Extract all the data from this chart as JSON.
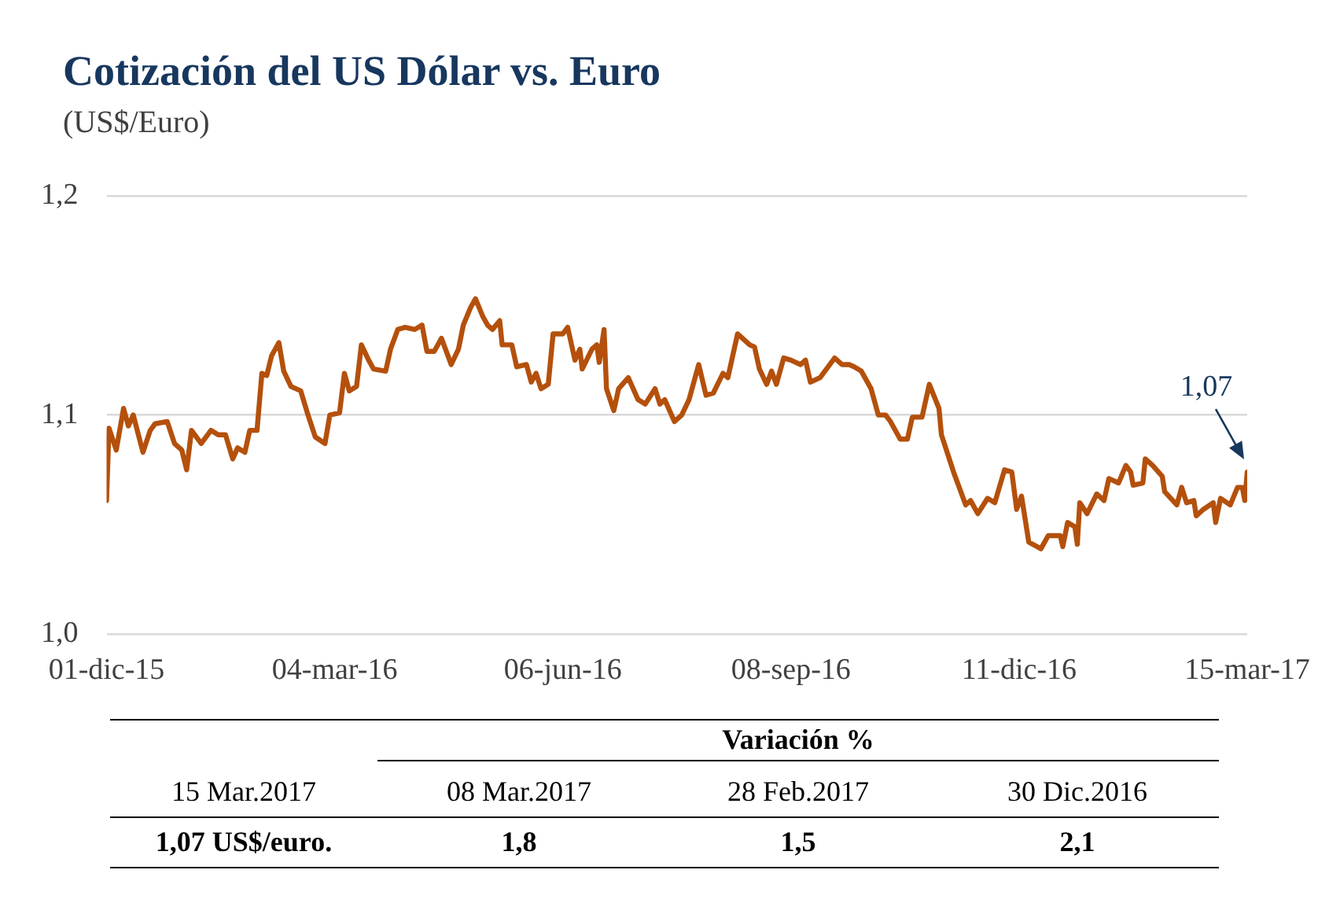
{
  "chart_data": [
    {
      "type": "line",
      "title": "Cotización del US Dólar vs. Euro",
      "subtitle": "(US$/Euro)",
      "color": "#b4500c",
      "grid": "y",
      "legend": false,
      "marker": "none",
      "line_style": "solid",
      "x": [
        "2015-12-01",
        "2015-12-02",
        "2015-12-05",
        "2015-12-08",
        "2015-12-10",
        "2015-12-12",
        "2015-12-16",
        "2015-12-19",
        "2015-12-21",
        "2015-12-26",
        "2015-12-29",
        "2016-01-01",
        "2016-01-03",
        "2016-01-05",
        "2016-01-09",
        "2016-01-13",
        "2016-01-16",
        "2016-01-19",
        "2016-01-22",
        "2016-01-24",
        "2016-01-27",
        "2016-01-29",
        "2016-02-01",
        "2016-02-03",
        "2016-02-05",
        "2016-02-07",
        "2016-02-10",
        "2016-02-12",
        "2016-02-15",
        "2016-02-19",
        "2016-02-22",
        "2016-02-25",
        "2016-02-29",
        "2016-03-02",
        "2016-03-06",
        "2016-03-08",
        "2016-03-10",
        "2016-03-13",
        "2016-03-15",
        "2016-03-18",
        "2016-03-20",
        "2016-03-25",
        "2016-03-27",
        "2016-03-30",
        "2016-04-02",
        "2016-04-06",
        "2016-04-09",
        "2016-04-11",
        "2016-04-14",
        "2016-04-17",
        "2016-04-21",
        "2016-04-24",
        "2016-04-26",
        "2016-04-29",
        "2016-05-01",
        "2016-05-04",
        "2016-05-06",
        "2016-05-08",
        "2016-05-11",
        "2016-05-12",
        "2016-05-16",
        "2016-05-18",
        "2016-05-22",
        "2016-05-24",
        "2016-05-26",
        "2016-05-28",
        "2016-05-31",
        "2016-06-02",
        "2016-06-06",
        "2016-06-08",
        "2016-06-11",
        "2016-06-13",
        "2016-06-14",
        "2016-06-18",
        "2016-06-20",
        "2016-06-21",
        "2016-06-23",
        "2016-06-24",
        "2016-06-27",
        "2016-06-29",
        "2016-07-03",
        "2016-07-07",
        "2016-07-10",
        "2016-07-14",
        "2016-07-16",
        "2016-07-18",
        "2016-07-22",
        "2016-07-25",
        "2016-07-28",
        "2016-08-01",
        "2016-08-04",
        "2016-08-07",
        "2016-08-11",
        "2016-08-13",
        "2016-08-17",
        "2016-08-22",
        "2016-08-24",
        "2016-08-26",
        "2016-08-29",
        "2016-08-31",
        "2016-09-02",
        "2016-09-05",
        "2016-09-08",
        "2016-09-12",
        "2016-09-14",
        "2016-09-16",
        "2016-09-20",
        "2016-09-26",
        "2016-09-29",
        "2016-10-02",
        "2016-10-04",
        "2016-10-07",
        "2016-10-11",
        "2016-10-14",
        "2016-10-17",
        "2016-10-19",
        "2016-10-23",
        "2016-10-26",
        "2016-10-28",
        "2016-11-01",
        "2016-11-04",
        "2016-11-08",
        "2016-11-09",
        "2016-11-14",
        "2016-11-19",
        "2016-11-21",
        "2016-11-24",
        "2016-11-28",
        "2016-12-01",
        "2016-12-05",
        "2016-12-08",
        "2016-12-10",
        "2016-12-12",
        "2016-12-15",
        "2016-12-20",
        "2016-12-23",
        "2016-12-28",
        "2016-12-29",
        "2016-12-31",
        "2017-01-03",
        "2017-01-04",
        "2017-01-05",
        "2017-01-08",
        "2017-01-12",
        "2017-01-15",
        "2017-01-17",
        "2017-01-21",
        "2017-01-24",
        "2017-01-26",
        "2017-01-27",
        "2017-01-31",
        "2017-02-01",
        "2017-02-04",
        "2017-02-08",
        "2017-02-09",
        "2017-02-14",
        "2017-02-16",
        "2017-02-18",
        "2017-02-21",
        "2017-02-22",
        "2017-02-25",
        "2017-03-01",
        "2017-03-02",
        "2017-03-04",
        "2017-03-08",
        "2017-03-11",
        "2017-03-13",
        "2017-03-14",
        "2017-03-15"
      ],
      "values": [
        1.061,
        1.094,
        1.084,
        1.103,
        1.095,
        1.1,
        1.083,
        1.093,
        1.096,
        1.097,
        1.087,
        1.084,
        1.075,
        1.093,
        1.087,
        1.093,
        1.091,
        1.091,
        1.08,
        1.085,
        1.083,
        1.093,
        1.093,
        1.119,
        1.118,
        1.127,
        1.133,
        1.12,
        1.113,
        1.111,
        1.1,
        1.09,
        1.087,
        1.1,
        1.101,
        1.119,
        1.111,
        1.113,
        1.132,
        1.125,
        1.121,
        1.12,
        1.13,
        1.139,
        1.14,
        1.139,
        1.141,
        1.129,
        1.129,
        1.135,
        1.123,
        1.13,
        1.141,
        1.149,
        1.153,
        1.145,
        1.141,
        1.139,
        1.143,
        1.132,
        1.132,
        1.122,
        1.123,
        1.115,
        1.119,
        1.112,
        1.114,
        1.137,
        1.137,
        1.14,
        1.125,
        1.13,
        1.121,
        1.13,
        1.132,
        1.124,
        1.139,
        1.112,
        1.102,
        1.112,
        1.117,
        1.107,
        1.105,
        1.112,
        1.105,
        1.107,
        1.097,
        1.1,
        1.107,
        1.123,
        1.109,
        1.11,
        1.119,
        1.117,
        1.137,
        1.132,
        1.131,
        1.121,
        1.114,
        1.12,
        1.114,
        1.126,
        1.125,
        1.123,
        1.125,
        1.115,
        1.117,
        1.126,
        1.123,
        1.123,
        1.122,
        1.12,
        1.112,
        1.1,
        1.1,
        1.097,
        1.089,
        1.089,
        1.099,
        1.099,
        1.114,
        1.103,
        1.091,
        1.074,
        1.059,
        1.061,
        1.055,
        1.062,
        1.06,
        1.075,
        1.074,
        1.057,
        1.063,
        1.042,
        1.039,
        1.045,
        1.045,
        1.04,
        1.051,
        1.049,
        1.041,
        1.06,
        1.055,
        1.064,
        1.061,
        1.071,
        1.069,
        1.077,
        1.074,
        1.068,
        1.069,
        1.08,
        1.077,
        1.072,
        1.065,
        1.059,
        1.067,
        1.06,
        1.061,
        1.054,
        1.057,
        1.06,
        1.051,
        1.062,
        1.059,
        1.067,
        1.067,
        1.061,
        1.074
      ],
      "xlim": [
        "2015-12-01",
        "2017-03-15"
      ],
      "xticks": [
        {
          "value": "2015-12-01",
          "label": "01-dic-15"
        },
        {
          "value": "2016-03-04",
          "label": "04-mar-16"
        },
        {
          "value": "2016-06-06",
          "label": "06-jun-16"
        },
        {
          "value": "2016-09-08",
          "label": "08-sep-16"
        },
        {
          "value": "2016-12-11",
          "label": "11-dic-16"
        },
        {
          "value": "2017-03-15",
          "label": "15-mar-17"
        }
      ],
      "ylim": [
        1.0,
        1.2
      ],
      "yticks": [
        {
          "value": 1.0,
          "label": "1,0"
        },
        {
          "value": 1.1,
          "label": "1,1"
        },
        {
          "value": 1.2,
          "label": "1,2"
        }
      ],
      "annotations": [
        {
          "text": "1,07",
          "x": "2017-03-15",
          "y": 1.074
        }
      ]
    },
    {
      "type": "other",
      "title": "Variación %",
      "categories": [
        "15 Mar.2017",
        "08 Mar.2017",
        "28 Feb.2017",
        "30 Dic.2016"
      ],
      "annotations": [
        "1,07 US$/euro.",
        "1,8",
        "1,5",
        "2,1"
      ]
    }
  ]
}
